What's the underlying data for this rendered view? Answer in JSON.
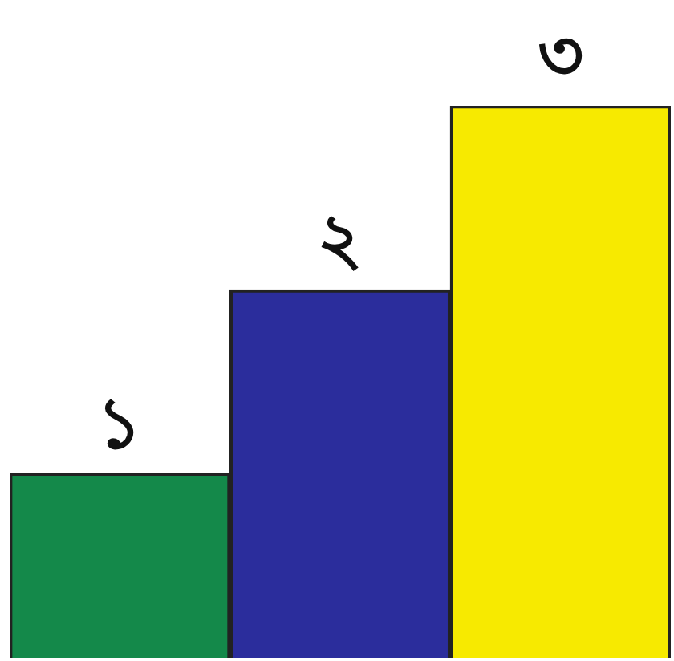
{
  "chart_data": {
    "type": "bar",
    "categories": [
      null,
      null,
      null
    ],
    "values": [
      1,
      2,
      3
    ],
    "colors": [
      "#14894a",
      "#2b2d9c",
      "#f7ea00"
    ],
    "value_labels": [
      "১",
      "২",
      "৩"
    ],
    "legend": false,
    "tick_labels": false
  }
}
